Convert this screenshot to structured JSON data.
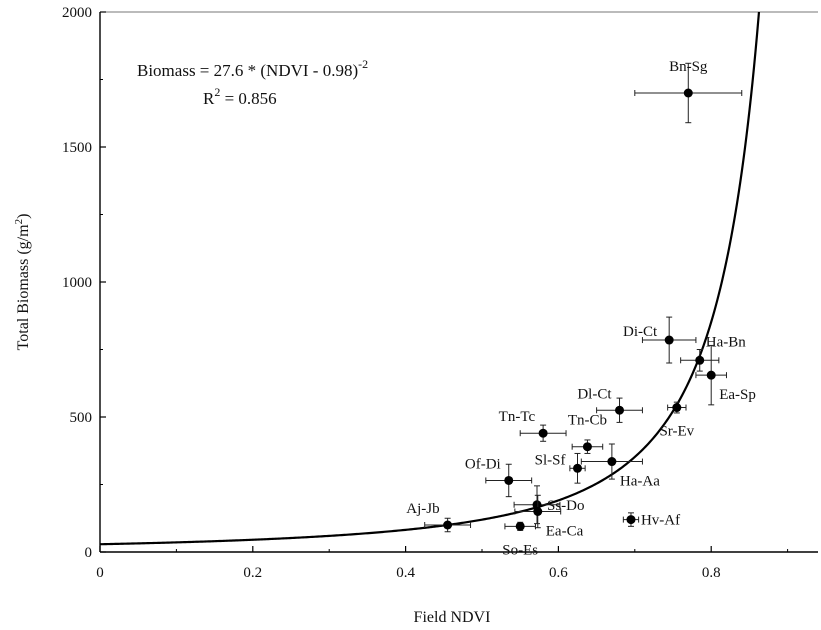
{
  "chart_data": {
    "type": "scatter",
    "title": "",
    "xlabel": "Field NDVI",
    "ylabel_main": "Total Biomass (g/m",
    "ylabel_sup": "2",
    "ylabel_close": ")",
    "xlim": [
      0,
      1.0
    ],
    "ylim": [
      0,
      2000
    ],
    "x_ticks": [
      0,
      0.2,
      0.4,
      0.6,
      0.8
    ],
    "x_tick_labels": [
      "0",
      "0.2",
      "0.4",
      "0.6",
      "0.8"
    ],
    "y_ticks": [
      0,
      500,
      1000,
      1500,
      2000
    ],
    "y_tick_labels": [
      "0",
      "500",
      "1000",
      "1500",
      "2000"
    ],
    "grid": false,
    "equation": {
      "main": "Biomass = 27.6 * (NDVI - 0.98)",
      "exponent": "-2",
      "r2_prefix": "R",
      "r2_sup": "2",
      "r2_value": " = 0.856"
    },
    "fit_curve": {
      "a": 27.6,
      "b": 0.98,
      "power": -2
    },
    "points": [
      {
        "label": "Bn-Sg",
        "x": 0.77,
        "y": 1700,
        "xerr": 0.07,
        "yerr": 110,
        "label_pos": "above"
      },
      {
        "label": "Di-Ct",
        "x": 0.745,
        "y": 785,
        "xerr": 0.035,
        "yerr": 85,
        "label_pos": "left"
      },
      {
        "label": "Ha-Bn",
        "x": 0.785,
        "y": 710,
        "xerr": 0.025,
        "yerr": 40,
        "label_pos": "upper-right"
      },
      {
        "label": "Ea-Sp",
        "x": 0.8,
        "y": 655,
        "xerr": 0.02,
        "yerr": 110,
        "label_pos": "lower-right"
      },
      {
        "label": "Dl-Ct",
        "x": 0.68,
        "y": 525,
        "xerr": 0.03,
        "yerr": 45,
        "label_pos": "upper-left"
      },
      {
        "label": "Sr-Ev",
        "x": 0.755,
        "y": 535,
        "xerr": 0.012,
        "yerr": 20,
        "label_pos": "below"
      },
      {
        "label": "Tn-Tc",
        "x": 0.58,
        "y": 440,
        "xerr": 0.03,
        "yerr": 30,
        "label_pos": "upper-left"
      },
      {
        "label": "Tn-Cb",
        "x": 0.638,
        "y": 390,
        "xerr": 0.02,
        "yerr": 25,
        "label_pos": "above"
      },
      {
        "label": "Ha-Aa",
        "x": 0.67,
        "y": 335,
        "xerr": 0.04,
        "yerr": 65,
        "label_pos": "lower-right"
      },
      {
        "label": "Sl-Sf",
        "x": 0.625,
        "y": 310,
        "xerr": 0.01,
        "yerr": 55,
        "label_pos": "left"
      },
      {
        "label": "Of-Di",
        "x": 0.535,
        "y": 265,
        "xerr": 0.03,
        "yerr": 60,
        "label_pos": "upper-left"
      },
      {
        "label": "Ss-Do",
        "x": 0.572,
        "y": 175,
        "xerr": 0.03,
        "yerr": 70,
        "label_pos": "right"
      },
      {
        "label": "Ea-Ca",
        "x": 0.573,
        "y": 150,
        "xerr": 0.03,
        "yerr": 60,
        "label_pos": "lower-right"
      },
      {
        "label": "Aj-Jb",
        "x": 0.455,
        "y": 100,
        "xerr": 0.03,
        "yerr": 25,
        "label_pos": "upper-left"
      },
      {
        "label": "So-Es",
        "x": 0.55,
        "y": 95,
        "xerr": 0.02,
        "yerr": 15,
        "label_pos": "below"
      },
      {
        "label": "Hv-Af",
        "x": 0.695,
        "y": 120,
        "xerr": 0.01,
        "yerr": 25,
        "label_pos": "right"
      }
    ]
  }
}
